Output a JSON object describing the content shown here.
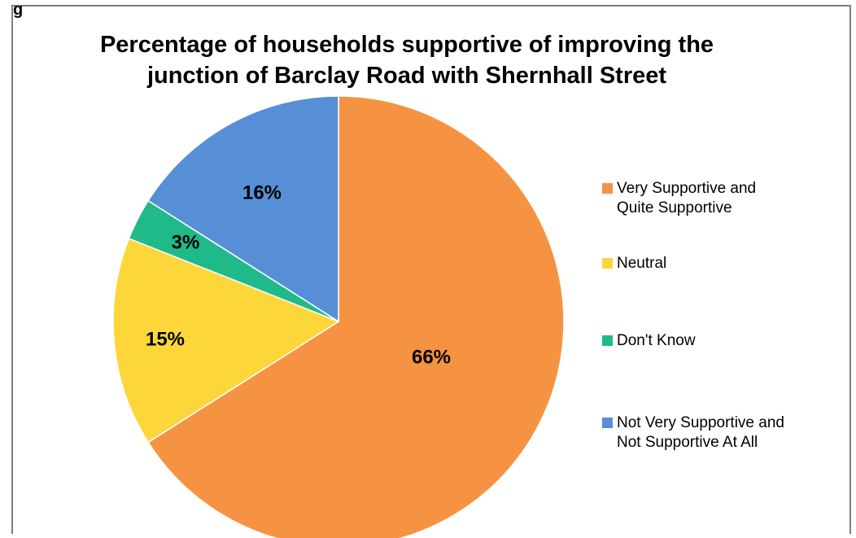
{
  "corner_glyph": "g",
  "chart_data": {
    "type": "pie",
    "title": "Percentage of households supportive of improving the junction of Barclay Road with Shernhall Street",
    "slices": [
      {
        "label": "Very Supportive and\nQuite Supportive",
        "value": 66,
        "display": "66%",
        "color": "#F59342"
      },
      {
        "label": "Neutral",
        "value": 15,
        "display": "15%",
        "color": "#FDD63A"
      },
      {
        "label": "Don't Know",
        "value": 3,
        "display": "3%",
        "color": "#20BA8A"
      },
      {
        "label": "Not Very Supportive and\nNot Supportive At All",
        "value": 16,
        "display": "16%",
        "color": "#578FD6"
      }
    ],
    "start": "12 o'clock, clockwise",
    "legend_position": "right"
  }
}
